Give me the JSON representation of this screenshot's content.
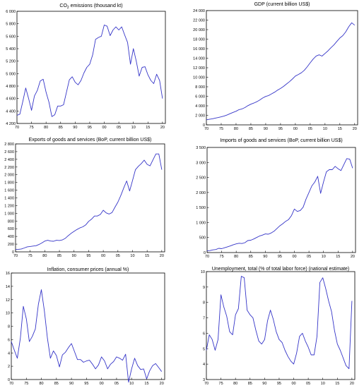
{
  "chart_data": [
    {
      "type": "line",
      "title": "CO2 emissions (thousand kt)",
      "title_main": "CO",
      "title_sub": "2",
      "title_rest": " emissions (thousand kt)",
      "series_color": "#3535c8",
      "x": [
        1970,
        1971,
        1972,
        1973,
        1974,
        1975,
        1976,
        1977,
        1978,
        1979,
        1980,
        1981,
        1982,
        1983,
        1984,
        1985,
        1986,
        1987,
        1988,
        1989,
        1990,
        1991,
        1992,
        1993,
        1994,
        1995,
        1996,
        1997,
        1998,
        1999,
        2000,
        2001,
        2002,
        2003,
        2004,
        2005,
        2006,
        2007,
        2008,
        2009,
        2010,
        2011,
        2012,
        2013,
        2014,
        2015,
        2016,
        2017,
        2018,
        2019,
        2020
      ],
      "values": [
        4330,
        4350,
        4550,
        4770,
        4600,
        4410,
        4640,
        4730,
        4880,
        4910,
        4700,
        4540,
        4310,
        4340,
        4480,
        4480,
        4500,
        4700,
        4900,
        4950,
        4860,
        4820,
        4890,
        5010,
        5100,
        5150,
        5300,
        5550,
        5580,
        5600,
        5780,
        5760,
        5610,
        5700,
        5750,
        5700,
        5750,
        5620,
        5500,
        5150,
        5400,
        5200,
        4960,
        5100,
        5110,
        4980,
        4890,
        4840,
        4990,
        4890,
        4600
      ],
      "xlim": [
        1970,
        2021
      ],
      "ylim": [
        4200,
        6000
      ],
      "xticks": [
        1970,
        1975,
        1980,
        1985,
        1990,
        1995,
        2000,
        2005,
        2010,
        2015,
        2020
      ],
      "xtick_labels": [
        "70",
        "75",
        "80",
        "85",
        "90",
        "95",
        "00",
        "05",
        "10",
        "15",
        "20"
      ],
      "yticks": [
        4200,
        4400,
        4600,
        4800,
        5000,
        5200,
        5400,
        5600,
        5800,
        6000
      ],
      "ytick_labels": [
        "4 200",
        "4 400",
        "4 600",
        "4 800",
        "5 000",
        "5 200",
        "5 400",
        "5 600",
        "5 800",
        "6 000"
      ]
    },
    {
      "type": "line",
      "title": "GDP (current billion US$)",
      "series_color": "#3535c8",
      "x": [
        1970,
        1971,
        1972,
        1973,
        1974,
        1975,
        1976,
        1977,
        1978,
        1979,
        1980,
        1981,
        1982,
        1983,
        1984,
        1985,
        1986,
        1987,
        1988,
        1989,
        1990,
        1991,
        1992,
        1993,
        1994,
        1995,
        1996,
        1997,
        1998,
        1999,
        2000,
        2001,
        2002,
        2003,
        2004,
        2005,
        2006,
        2007,
        2008,
        2009,
        2010,
        2011,
        2012,
        2013,
        2014,
        2015,
        2016,
        2017,
        2018,
        2019,
        2020
      ],
      "values": [
        1073,
        1165,
        1280,
        1425,
        1545,
        1685,
        1873,
        2082,
        2352,
        2627,
        2857,
        3207,
        3343,
        3634,
        4037,
        4339,
        4579,
        4855,
        5236,
        5641,
        5963,
        6158,
        6520,
        6858,
        7287,
        7640,
        8073,
        8578,
        9063,
        9631,
        10252,
        10582,
        10936,
        11458,
        12214,
        13037,
        13815,
        14452,
        14713,
        14449,
        14992,
        15543,
        16197,
        16785,
        17527,
        18238,
        18745,
        19543,
        20612,
        21433,
        20937
      ],
      "xlim": [
        1970,
        2021
      ],
      "ylim": [
        0,
        24000
      ],
      "xticks": [
        1970,
        1975,
        1980,
        1985,
        1990,
        1995,
        2000,
        2005,
        2010,
        2015,
        2020
      ],
      "xtick_labels": [
        "70",
        "75",
        "80",
        "85",
        "90",
        "95",
        "00",
        "05",
        "10",
        "15",
        "20"
      ],
      "yticks": [
        0,
        2000,
        4000,
        6000,
        8000,
        10000,
        12000,
        14000,
        16000,
        18000,
        20000,
        22000,
        24000
      ],
      "ytick_labels": [
        "0",
        "2 000",
        "4 000",
        "6 000",
        "8 000",
        "10 000",
        "12 000",
        "14 000",
        "16 000",
        "18 000",
        "20 000",
        "22 000",
        "24 000"
      ]
    },
    {
      "type": "line",
      "title": "Exports of goods and services (BoP, current billion US$)",
      "series_color": "#3535c8",
      "x": [
        1970,
        1971,
        1972,
        1973,
        1974,
        1975,
        1976,
        1977,
        1978,
        1979,
        1980,
        1981,
        1982,
        1983,
        1984,
        1985,
        1986,
        1987,
        1988,
        1989,
        1990,
        1991,
        1992,
        1993,
        1994,
        1995,
        1996,
        1997,
        1998,
        1999,
        2000,
        2001,
        2002,
        2003,
        2004,
        2005,
        2006,
        2007,
        2008,
        2009,
        2010,
        2011,
        2012,
        2013,
        2014,
        2015,
        2016,
        2017,
        2018,
        2019,
        2020
      ],
      "values": [
        60,
        65,
        75,
        100,
        130,
        140,
        150,
        160,
        190,
        230,
        280,
        300,
        280,
        275,
        300,
        295,
        310,
        350,
        420,
        480,
        530,
        580,
        620,
        650,
        700,
        790,
        850,
        930,
        930,
        970,
        1080,
        1010,
        980,
        1020,
        1160,
        1290,
        1460,
        1660,
        1840,
        1580,
        1850,
        2130,
        2220,
        2290,
        2380,
        2270,
        2230,
        2390,
        2540,
        2540,
        2130
      ],
      "xlim": [
        1970,
        2021
      ],
      "ylim": [
        0,
        2800
      ],
      "xticks": [
        1970,
        1975,
        1980,
        1985,
        1990,
        1995,
        2000,
        2005,
        2010,
        2015,
        2020
      ],
      "xtick_labels": [
        "70",
        "75",
        "80",
        "85",
        "90",
        "95",
        "00",
        "05",
        "10",
        "15",
        "20"
      ],
      "yticks": [
        0,
        200,
        400,
        600,
        800,
        1000,
        1200,
        1400,
        1600,
        1800,
        2000,
        2200,
        2400,
        2600,
        2800
      ],
      "ytick_labels": [
        "0",
        "200",
        "400",
        "600",
        "800",
        "1 000",
        "1 200",
        "1 400",
        "1 600",
        "1 800",
        "2 000",
        "2 200",
        "2 400",
        "2 600",
        "2 800"
      ]
    },
    {
      "type": "line",
      "title": "Imports of goods and services (BoP, current billion US$)",
      "series_color": "#3535c8",
      "x": [
        1970,
        1971,
        1972,
        1973,
        1974,
        1975,
        1976,
        1977,
        1978,
        1979,
        1980,
        1981,
        1982,
        1983,
        1984,
        1985,
        1986,
        1987,
        1988,
        1989,
        1990,
        1991,
        1992,
        1993,
        1994,
        1995,
        1996,
        1997,
        1998,
        1999,
        2000,
        2001,
        2002,
        2003,
        2004,
        2005,
        2006,
        2007,
        2008,
        2009,
        2010,
        2011,
        2012,
        2013,
        2014,
        2015,
        2016,
        2017,
        2018,
        2019,
        2020
      ],
      "values": [
        60,
        65,
        90,
        100,
        140,
        130,
        160,
        190,
        220,
        260,
        290,
        310,
        300,
        330,
        400,
        410,
        450,
        500,
        550,
        580,
        620,
        610,
        650,
        710,
        800,
        890,
        960,
        1040,
        1100,
        1230,
        1450,
        1370,
        1400,
        1510,
        1780,
        2000,
        2220,
        2350,
        2540,
        1970,
        2350,
        2690,
        2760,
        2760,
        2870,
        2790,
        2730,
        2930,
        3130,
        3110,
        2810
      ],
      "xlim": [
        1970,
        2021
      ],
      "ylim": [
        0,
        3500
      ],
      "xticks": [
        1970,
        1975,
        1980,
        1985,
        1990,
        1995,
        2000,
        2005,
        2010,
        2015,
        2020
      ],
      "xtick_labels": [
        "70",
        "75",
        "80",
        "85",
        "90",
        "95",
        "00",
        "05",
        "10",
        "15",
        "20"
      ],
      "yticks": [
        0,
        500,
        1000,
        1500,
        2000,
        2500,
        3000,
        3500
      ],
      "ytick_labels": [
        "0",
        "500",
        "1 000",
        "1 500",
        "2 000",
        "2 500",
        "3 000",
        "3 500"
      ]
    },
    {
      "type": "line",
      "title": "Inflation, consumer prices (annual %)",
      "series_color": "#3535c8",
      "x": [
        1970,
        1971,
        1972,
        1973,
        1974,
        1975,
        1976,
        1977,
        1978,
        1979,
        1980,
        1981,
        1982,
        1983,
        1984,
        1985,
        1986,
        1987,
        1988,
        1989,
        1990,
        1991,
        1992,
        1993,
        1994,
        1995,
        1996,
        1997,
        1998,
        1999,
        2000,
        2001,
        2002,
        2003,
        2004,
        2005,
        2006,
        2007,
        2008,
        2009,
        2010,
        2011,
        2012,
        2013,
        2014,
        2015,
        2016,
        2017,
        2018,
        2019,
        2020
      ],
      "values": [
        5.7,
        4.4,
        3.2,
        6.2,
        11.0,
        9.1,
        5.7,
        6.5,
        7.6,
        11.3,
        13.5,
        10.3,
        6.2,
        3.2,
        4.3,
        3.6,
        1.9,
        3.7,
        4.1,
        4.8,
        5.4,
        4.2,
        3.0,
        3.0,
        2.6,
        2.8,
        2.9,
        2.3,
        1.6,
        2.2,
        3.4,
        2.8,
        1.6,
        2.3,
        2.7,
        3.4,
        3.2,
        2.9,
        3.8,
        -0.4,
        1.6,
        3.2,
        2.1,
        1.5,
        1.6,
        0.1,
        1.3,
        2.1,
        2.4,
        1.8,
        1.2
      ],
      "xlim": [
        1970,
        2021
      ],
      "ylim": [
        0,
        16
      ],
      "xticks": [
        1970,
        1975,
        1980,
        1985,
        1990,
        1995,
        2000,
        2005,
        2010,
        2015,
        2020
      ],
      "xtick_labels": [
        "70",
        "75",
        "80",
        "85",
        "90",
        "95",
        "00",
        "05",
        "10",
        "15",
        "20"
      ],
      "yticks": [
        0,
        2,
        4,
        6,
        8,
        10,
        12,
        14,
        16
      ],
      "ytick_labels": [
        "0",
        "2",
        "4",
        "6",
        "8",
        "10",
        "12",
        "14",
        "16"
      ]
    },
    {
      "type": "line",
      "title": "Unemployment, total (% of total labor force) (national estimate)",
      "series_color": "#3535c8",
      "x": [
        1970,
        1971,
        1972,
        1973,
        1974,
        1975,
        1976,
        1977,
        1978,
        1979,
        1980,
        1981,
        1982,
        1983,
        1984,
        1985,
        1986,
        1987,
        1988,
        1989,
        1990,
        1991,
        1992,
        1993,
        1994,
        1995,
        1996,
        1997,
        1998,
        1999,
        2000,
        2001,
        2002,
        2003,
        2004,
        2005,
        2006,
        2007,
        2008,
        2009,
        2010,
        2011,
        2012,
        2013,
        2014,
        2015,
        2016,
        2017,
        2018,
        2019,
        2020
      ],
      "values": [
        4.9,
        5.9,
        5.6,
        4.9,
        5.6,
        8.5,
        7.7,
        7.1,
        6.1,
        5.9,
        7.2,
        7.6,
        9.7,
        9.6,
        7.5,
        7.2,
        7.0,
        6.2,
        5.5,
        5.3,
        5.6,
        6.8,
        7.5,
        6.9,
        6.1,
        5.6,
        5.4,
        4.9,
        4.5,
        4.2,
        4.0,
        4.7,
        5.8,
        6.0,
        5.5,
        5.1,
        4.6,
        4.6,
        5.8,
        9.3,
        9.6,
        8.9,
        8.1,
        7.4,
        6.2,
        5.3,
        4.9,
        4.4,
        3.9,
        3.7,
        8.1
      ],
      "xlim": [
        1970,
        2021
      ],
      "ylim": [
        3,
        10
      ],
      "xticks": [
        1970,
        1975,
        1980,
        1985,
        1990,
        1995,
        2000,
        2005,
        2010,
        2015,
        2020
      ],
      "xtick_labels": [
        "70",
        "75",
        "80",
        "85",
        "90",
        "95",
        "00",
        "05",
        "10",
        "15",
        "20"
      ],
      "yticks": [
        3,
        4,
        5,
        6,
        7,
        8,
        9,
        10
      ],
      "ytick_labels": [
        "3",
        "4",
        "5",
        "6",
        "7",
        "8",
        "9",
        "10"
      ]
    }
  ]
}
